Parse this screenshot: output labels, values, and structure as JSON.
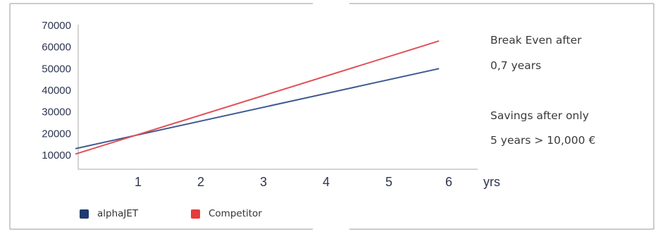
{
  "chart_data": {
    "type": "line",
    "x": [
      0,
      5.8
    ],
    "series": [
      {
        "name": "alphaJET",
        "color": "#3d5a8f",
        "values": [
          13000,
          50000
        ]
      },
      {
        "name": "Competitor",
        "color": "#e05058",
        "values": [
          10500,
          62800
        ]
      }
    ],
    "yticks": [
      "70000",
      "60000",
      "50000",
      "40000",
      "30000",
      "20000",
      "10000"
    ],
    "xticks": [
      "1",
      "2",
      "3",
      "4",
      "5",
      "6"
    ],
    "xunit": "yrs",
    "ylim": [
      10000,
      70000
    ],
    "xlim": [
      0,
      6
    ],
    "legend_placement": "bottom-left",
    "grid": false
  },
  "annotations": {
    "break_even_line1": "Break Even after",
    "break_even_line2": "0,7 years",
    "savings_line1": "Savings after only",
    "savings_line2": "5 years > 10,000 €"
  },
  "legend": {
    "alphajet_label": "alphaJET",
    "alphajet_color": "#1f3a6e",
    "competitor_label": "Competitor",
    "competitor_color": "#e43b3b"
  }
}
